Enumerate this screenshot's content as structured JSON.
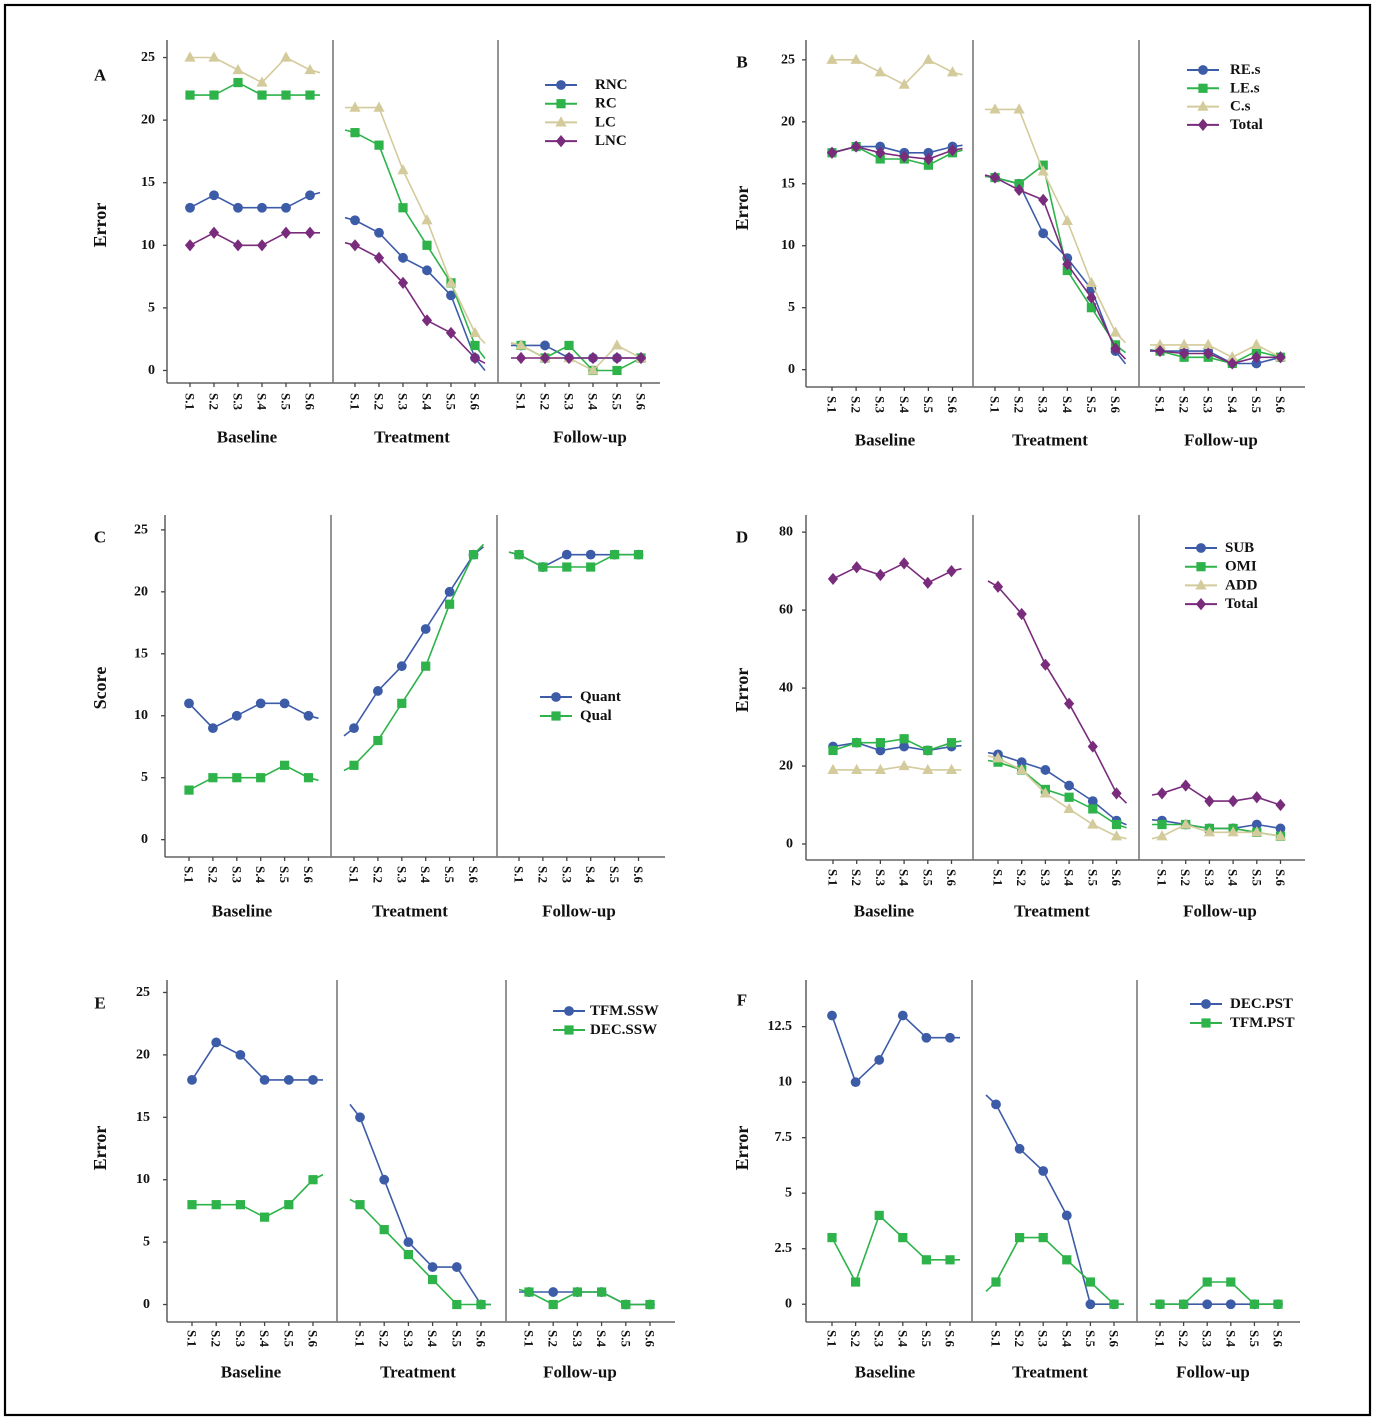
{
  "chart_data": [
    {
      "panel": "A",
      "type": "line",
      "ylabel": "Error",
      "yticks": [
        0,
        5,
        10,
        15,
        20,
        25
      ],
      "ylim": [
        -1,
        26.4
      ],
      "grid": false,
      "legend": "top-right",
      "phases": [
        "Baseline",
        "Treatment",
        "Follow-up"
      ],
      "sessions": [
        "S.1",
        "S.2",
        "S.3",
        "S.4",
        "S.5",
        "S.6"
      ],
      "series": [
        {
          "name": "RNC",
          "marker": "circle",
          "color": "#3d5ca8",
          "values": [
            [
              13,
              14,
              13,
              13,
              13,
              14
            ],
            [
              12,
              11,
              9,
              8,
              6,
              1
            ],
            [
              2,
              2,
              1,
              1,
              1,
              1
            ]
          ]
        },
        {
          "name": "RC",
          "marker": "square",
          "color": "#2db34a",
          "values": [
            [
              22,
              22,
              23,
              22,
              22,
              22
            ],
            [
              19,
              18,
              13,
              10,
              7,
              2
            ],
            [
              2,
              1,
              2,
              0,
              0,
              1
            ]
          ]
        },
        {
          "name": "LC",
          "marker": "triangle",
          "color": "#d3cb9b",
          "values": [
            [
              25,
              25,
              24,
              23,
              25,
              24
            ],
            [
              21,
              21,
              16,
              12,
              7,
              3
            ],
            [
              2,
              1,
              1,
              0,
              2,
              1
            ]
          ]
        },
        {
          "name": "LNC",
          "marker": "diamond",
          "color": "#7a2c7c",
          "values": [
            [
              10,
              11,
              10,
              10,
              11,
              11
            ],
            [
              10,
              9,
              7,
              4,
              3,
              1
            ],
            [
              1,
              1,
              1,
              1,
              1,
              1
            ]
          ]
        }
      ]
    },
    {
      "panel": "B",
      "type": "line",
      "ylabel": "Error",
      "yticks": [
        0,
        5,
        10,
        15,
        20,
        25
      ],
      "ylim": [
        -1.4,
        26.6
      ],
      "grid": false,
      "legend": "top-right",
      "phases": [
        "Baseline",
        "Treatment",
        "Follow-up"
      ],
      "sessions": [
        "S.1",
        "S.2",
        "S.3",
        "S.4",
        "S.5",
        "S.6"
      ],
      "series": [
        {
          "name": "RE.s",
          "marker": "circle",
          "color": "#3d5ca8",
          "values": [
            [
              17.5,
              18,
              18,
              17.5,
              17.5,
              18
            ],
            [
              15.5,
              15,
              11,
              9,
              6.5,
              1.5
            ],
            [
              1.5,
              1.5,
              1.5,
              0.5,
              0.5,
              1
            ]
          ]
        },
        {
          "name": "LE.s",
          "marker": "square",
          "color": "#2db34a",
          "values": [
            [
              17.5,
              18,
              17,
              17,
              16.5,
              17.5
            ],
            [
              15.5,
              15,
              16.5,
              8,
              5,
              2
            ],
            [
              1.5,
              1,
              1,
              0.5,
              1.5,
              1
            ]
          ]
        },
        {
          "name": "C.s",
          "marker": "triangle",
          "color": "#d3cb9b",
          "values": [
            [
              25,
              25,
              24,
              23,
              25,
              24
            ],
            [
              21,
              21,
              16,
              12,
              7,
              3
            ],
            [
              2,
              2,
              2,
              1,
              2,
              1
            ]
          ]
        },
        {
          "name": "Total",
          "marker": "diamond",
          "color": "#7a2c7c",
          "values": [
            [
              17.5,
              18,
              17.5,
              17.2,
              17,
              17.7
            ],
            [
              15.5,
              14.5,
              13.7,
              8.5,
              5.8,
              1.7
            ],
            [
              1.5,
              1.3,
              1.3,
              0.5,
              1,
              1
            ]
          ]
        }
      ]
    },
    {
      "panel": "C",
      "type": "line",
      "ylabel": "Score",
      "yticks": [
        0,
        5,
        10,
        15,
        20,
        25
      ],
      "ylim": [
        -1.4,
        26.2
      ],
      "grid": false,
      "legend": "right",
      "phases": [
        "Baseline",
        "Treatment",
        "Follow-up"
      ],
      "sessions": [
        "S.1",
        "S.2",
        "S.3",
        "S.4",
        "S.5",
        "S.6"
      ],
      "series": [
        {
          "name": "Quant",
          "marker": "circle",
          "color": "#3d5ca8",
          "values": [
            [
              11,
              9,
              10,
              11,
              11,
              10
            ],
            [
              9,
              12,
              14,
              17,
              20,
              23
            ],
            [
              23,
              22,
              23,
              23,
              23,
              23
            ]
          ]
        },
        {
          "name": "Qual",
          "marker": "square",
          "color": "#2db34a",
          "values": [
            [
              4,
              5,
              5,
              5,
              6,
              5
            ],
            [
              6,
              8,
              11,
              14,
              19,
              23
            ],
            [
              23,
              22,
              22,
              22,
              23,
              23
            ]
          ]
        }
      ]
    },
    {
      "panel": "D",
      "type": "line",
      "ylabel": "Error",
      "yticks": [
        0,
        20,
        40,
        60,
        80
      ],
      "ylim": [
        -4.1,
        84.4
      ],
      "grid": false,
      "legend": "top-right",
      "phases": [
        "Baseline",
        "Treatment",
        "Follow-up"
      ],
      "sessions": [
        "S.1",
        "S.2",
        "S.3",
        "S.4",
        "S.5",
        "S.6"
      ],
      "series": [
        {
          "name": "SUB",
          "marker": "circle",
          "color": "#3d5ca8",
          "values": [
            [
              25,
              26,
              24,
              25,
              24,
              25
            ],
            [
              23,
              21,
              19,
              15,
              11,
              6
            ],
            [
              6,
              5,
              4,
              4,
              5,
              4
            ]
          ]
        },
        {
          "name": "OMI",
          "marker": "square",
          "color": "#2db34a",
          "values": [
            [
              24,
              26,
              26,
              27,
              24,
              26
            ],
            [
              21,
              19,
              14,
              12,
              9,
              5
            ],
            [
              5,
              5,
              4,
              4,
              3,
              2
            ]
          ]
        },
        {
          "name": "ADD",
          "marker": "triangle",
          "color": "#d3cb9b",
          "values": [
            [
              19,
              19,
              19,
              20,
              19,
              19
            ],
            [
              22,
              19,
              13,
              9,
              5,
              2
            ],
            [
              2,
              5,
              3,
              3,
              3,
              2
            ]
          ]
        },
        {
          "name": "Total",
          "marker": "diamond",
          "color": "#7a2c7c",
          "values": [
            [
              68,
              71,
              69,
              72,
              67,
              70
            ],
            [
              66,
              59,
              46,
              36,
              25,
              13
            ],
            [
              13,
              15,
              11,
              11,
              12,
              10
            ]
          ]
        }
      ]
    },
    {
      "panel": "E",
      "type": "line",
      "ylabel": "Error",
      "yticks": [
        0,
        5,
        10,
        15,
        20,
        25
      ],
      "ylim": [
        -1.4,
        26
      ],
      "grid": false,
      "legend": "top-right",
      "phases": [
        "Baseline",
        "Treatment",
        "Follow-up"
      ],
      "sessions": [
        "S.1",
        "S.2",
        "S.3",
        "S.4",
        "S.5",
        "S.6"
      ],
      "series": [
        {
          "name": "TFM.SSW",
          "marker": "circle",
          "color": "#3d5ca8",
          "values": [
            [
              18,
              21,
              20,
              18,
              18,
              18
            ],
            [
              15,
              10,
              5,
              3,
              3,
              0
            ],
            [
              1,
              1,
              1,
              1,
              0,
              0
            ]
          ]
        },
        {
          "name": "DEC.SSW",
          "marker": "square",
          "color": "#2db34a",
          "values": [
            [
              8,
              8,
              8,
              7,
              8,
              10
            ],
            [
              8,
              6,
              4,
              2,
              0,
              0
            ],
            [
              1,
              0,
              1,
              1,
              0,
              0
            ]
          ]
        }
      ]
    },
    {
      "panel": "F",
      "type": "line",
      "ylabel": "Error",
      "yticks": [
        0,
        2.5,
        5,
        7.5,
        10,
        12.5
      ],
      "ylim": [
        -0.8,
        14.6
      ],
      "grid": false,
      "legend": "top-right",
      "phases": [
        "Baseline",
        "Treatment",
        "Follow-up"
      ],
      "sessions": [
        "S.1",
        "S.2",
        "S.3",
        "S.4",
        "S.5",
        "S.6"
      ],
      "series": [
        {
          "name": "DEC.PST",
          "marker": "circle",
          "color": "#3d5ca8",
          "values": [
            [
              13,
              10,
              11,
              13,
              12,
              12
            ],
            [
              9,
              7,
              6,
              4,
              0,
              0
            ],
            [
              0,
              0,
              0,
              0,
              0,
              0
            ]
          ]
        },
        {
          "name": "TFM.PST",
          "marker": "square",
          "color": "#2db34a",
          "values": [
            [
              3,
              1,
              4,
              3,
              2,
              2
            ],
            [
              1,
              3,
              3,
              2,
              1,
              0
            ],
            [
              0,
              0,
              1,
              1,
              0,
              0
            ]
          ]
        }
      ]
    }
  ]
}
